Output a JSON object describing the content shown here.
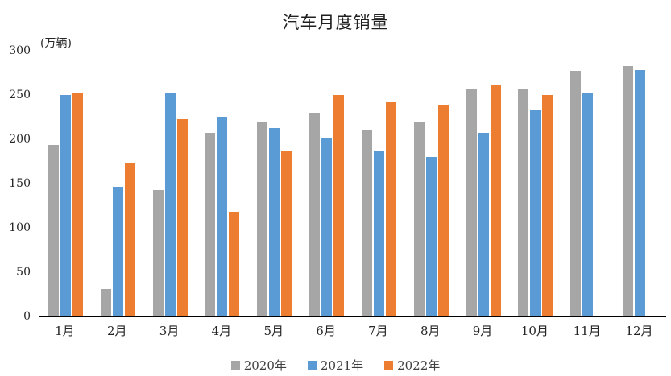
{
  "title": "汽车月度销量",
  "unit_label": "(万辆)",
  "chart_data": {
    "type": "bar",
    "title": "汽车月度销量",
    "ylabel": "(万辆)",
    "xlabel": "",
    "categories": [
      "1月",
      "2月",
      "3月",
      "4月",
      "5月",
      "6月",
      "7月",
      "8月",
      "9月",
      "10月",
      "11月",
      "12月"
    ],
    "series": [
      {
        "name": "2020年",
        "color": "#A6A6A6",
        "values": [
          194,
          31,
          143,
          207,
          219,
          230,
          211,
          219,
          256,
          257,
          277,
          283
        ]
      },
      {
        "name": "2021年",
        "color": "#5B9BD5",
        "values": [
          250,
          146,
          253,
          225,
          213,
          202,
          186,
          180,
          207,
          233,
          252,
          278
        ]
      },
      {
        "name": "2022年",
        "color": "#ED7D31",
        "values": [
          253,
          174,
          223,
          118,
          186,
          250,
          242,
          238,
          261,
          250,
          null,
          null
        ]
      }
    ],
    "ylim": [
      0,
      300
    ],
    "ytick_step": 50,
    "yticks": [
      0,
      50,
      100,
      150,
      200,
      250,
      300
    ],
    "grid": false,
    "legend_position": "bottom"
  }
}
